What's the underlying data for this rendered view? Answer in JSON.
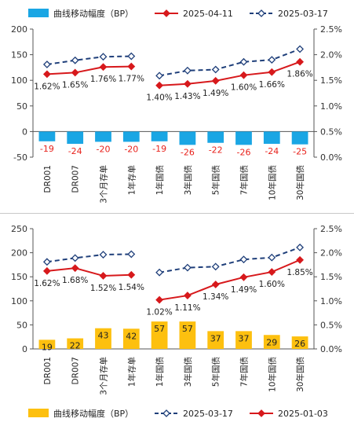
{
  "chart_data": [
    {
      "type": "bar+line",
      "categories": [
        "DR001",
        "DR007",
        "3个月存单",
        "1年存单",
        "1年国债",
        "3年国债",
        "5年国债",
        "7年国债",
        "10年国债",
        "30年国债"
      ],
      "legend_position": "top",
      "grid": false,
      "left_axis": {
        "range": [
          -50,
          200
        ],
        "ticks": [
          "-50",
          "0",
          "50",
          "100",
          "150",
          "200"
        ]
      },
      "right_axis": {
        "range": [
          0,
          2.5
        ],
        "ticks": [
          "0.0%",
          "0.5%",
          "1.0%",
          "1.5%",
          "2.0%",
          "2.5%"
        ]
      },
      "bars": {
        "name": "曲线移动幅度（BP）",
        "color": "#1aa6e4",
        "values": [
          -19,
          -24,
          -20,
          -20,
          -19,
          -26,
          -22,
          -26,
          -24,
          -25
        ],
        "labels": [
          "-19",
          "-24",
          "-20",
          "-20",
          "-19",
          "-26",
          "-22",
          "-26",
          "-24",
          "-25"
        ],
        "label_color": "#e8221c"
      },
      "series": [
        {
          "name": "2025-04-11",
          "style": "solid",
          "marker": "diamond-filled",
          "color": "#d7191c",
          "values": [
            1.62,
            1.65,
            1.76,
            1.77,
            1.4,
            1.43,
            1.49,
            1.6,
            1.66,
            1.86
          ],
          "labels": [
            "1.62%",
            "1.65%",
            "1.76%",
            "1.77%",
            "1.40%",
            "1.43%",
            "1.49%",
            "1.60%",
            "1.66%",
            "1.86%"
          ]
        },
        {
          "name": "2025-03-17",
          "style": "dashed",
          "marker": "diamond-open",
          "color": "#1f3f7a",
          "values": [
            1.81,
            1.89,
            1.96,
            1.97,
            1.59,
            1.69,
            1.71,
            1.86,
            1.9,
            2.11
          ]
        }
      ]
    },
    {
      "type": "bar+line",
      "categories": [
        "DR001",
        "DR007",
        "3个月存单",
        "1年存单",
        "1年国债",
        "3年国债",
        "5年国债",
        "7年国债",
        "10年国债",
        "30年国债"
      ],
      "legend_position": "bottom",
      "grid": false,
      "left_axis": {
        "range": [
          0,
          250
        ],
        "ticks": [
          "0",
          "50",
          "100",
          "150",
          "200",
          "250"
        ]
      },
      "right_axis": {
        "range": [
          0,
          2.5
        ],
        "ticks": [
          "0.0%",
          "0.5%",
          "1.0%",
          "1.5%",
          "2.0%",
          "2.5%"
        ]
      },
      "bars": {
        "name": "曲线移动幅度（BP）",
        "color": "#fdc00f",
        "values": [
          19,
          22,
          43,
          42,
          57,
          57,
          37,
          37,
          29,
          26
        ],
        "labels": [
          "19",
          "22",
          "43",
          "42",
          "57",
          "57",
          "37",
          "37",
          "29",
          "26"
        ],
        "label_color": "#222222"
      },
      "series": [
        {
          "name": "2025-03-17",
          "style": "dashed",
          "marker": "diamond-open",
          "color": "#1f3f7a",
          "values": [
            1.81,
            1.89,
            1.96,
            1.97,
            1.59,
            1.69,
            1.71,
            1.86,
            1.9,
            2.11
          ]
        },
        {
          "name": "2025-01-03",
          "style": "solid",
          "marker": "diamond-filled",
          "color": "#d7191c",
          "values": [
            1.62,
            1.68,
            1.52,
            1.54,
            1.02,
            1.11,
            1.34,
            1.49,
            1.6,
            1.85
          ],
          "labels": [
            "1.62%",
            "1.68%",
            "1.52%",
            "1.54%",
            "1.02%",
            "1.11%",
            "1.34%",
            "1.49%",
            "1.60%",
            "1.85%"
          ]
        }
      ]
    }
  ]
}
